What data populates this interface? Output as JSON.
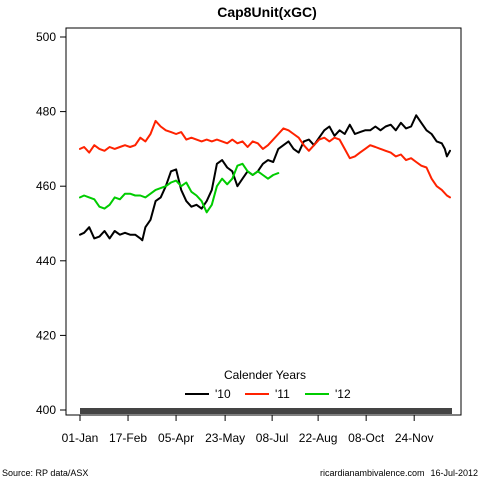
{
  "chart_data": {
    "type": "line",
    "title": "Cap8Unit(xGC)",
    "xlabel": "",
    "ylabel": "",
    "ylim": [
      400,
      500
    ],
    "xlim": [
      1,
      365
    ],
    "yticks": [
      400,
      420,
      440,
      460,
      480,
      500
    ],
    "xtick_labels": [
      "01-Jan",
      "17-Feb",
      "05-Apr",
      "23-May",
      "08-Jul",
      "22-Aug",
      "08-Oct",
      "24-Nov"
    ],
    "xtick_days": [
      1,
      48,
      95,
      143,
      189,
      234,
      281,
      328
    ],
    "legend_title": "Calender Years",
    "legend_position": "bottom-center",
    "grid": false,
    "series": [
      {
        "name": "'10",
        "color": "#000000",
        "x": [
          1,
          5,
          10,
          15,
          20,
          25,
          30,
          35,
          40,
          45,
          50,
          55,
          60,
          62,
          65,
          70,
          75,
          80,
          85,
          90,
          95,
          100,
          105,
          110,
          115,
          120,
          125,
          130,
          135,
          140,
          145,
          150,
          155,
          160,
          165,
          170,
          175,
          180,
          185,
          190,
          195,
          200,
          205,
          210,
          215,
          220,
          225,
          230,
          235,
          240,
          245,
          250,
          255,
          260,
          265,
          270,
          275,
          280,
          285,
          290,
          295,
          300,
          305,
          310,
          315,
          320,
          325,
          330,
          335,
          340,
          345,
          350,
          355,
          358,
          360,
          363
        ],
        "values": [
          447,
          447.5,
          449,
          446,
          446.5,
          448,
          446,
          448,
          447,
          447.5,
          447,
          447,
          446,
          445.5,
          449,
          451,
          456,
          457,
          460,
          464,
          464.5,
          459,
          456,
          454.5,
          455,
          454,
          456,
          459,
          466,
          467,
          465,
          464,
          460,
          462,
          464,
          463,
          464,
          466,
          467,
          466.5,
          470,
          471,
          472,
          470,
          469,
          472,
          472.5,
          471,
          473,
          475,
          476,
          473.5,
          475,
          474,
          476.5,
          474,
          474.5,
          475,
          475,
          476,
          475,
          476,
          476.5,
          475,
          477,
          475.5,
          476,
          479,
          477,
          475,
          474,
          472,
          471.5,
          470,
          468,
          469.5
        ]
      },
      {
        "name": "'11",
        "color": "#ff2200",
        "x": [
          1,
          5,
          10,
          15,
          20,
          25,
          30,
          35,
          40,
          45,
          50,
          55,
          60,
          65,
          70,
          75,
          80,
          85,
          90,
          95,
          100,
          105,
          110,
          115,
          120,
          125,
          130,
          135,
          140,
          145,
          150,
          155,
          160,
          165,
          170,
          175,
          180,
          185,
          190,
          195,
          200,
          205,
          210,
          215,
          220,
          225,
          230,
          235,
          240,
          245,
          250,
          255,
          260,
          265,
          270,
          275,
          280,
          285,
          290,
          295,
          300,
          305,
          310,
          315,
          320,
          325,
          330,
          335,
          340,
          345,
          350,
          355,
          360,
          363
        ],
        "values": [
          470,
          470.5,
          469,
          471,
          470,
          469.5,
          470.5,
          470,
          470.5,
          471,
          470.5,
          471,
          473,
          472,
          474,
          477.5,
          476,
          475,
          474.5,
          474,
          474.5,
          472.5,
          473,
          472.5,
          472,
          472.5,
          472,
          472.5,
          472,
          471.5,
          472.5,
          471.5,
          472,
          470.5,
          472,
          471.5,
          470,
          471,
          472.5,
          474,
          475.5,
          475,
          474,
          473,
          471,
          469.5,
          471,
          472.5,
          473,
          472,
          473,
          472.5,
          470,
          467.5,
          468,
          469,
          470,
          471,
          470.5,
          470,
          469.5,
          469,
          468,
          468.5,
          467,
          467.5,
          466.5,
          465.5,
          465,
          462,
          460,
          459,
          457.5,
          457
        ]
      },
      {
        "name": "'12",
        "color": "#00cc00",
        "x": [
          1,
          5,
          10,
          15,
          20,
          25,
          30,
          35,
          40,
          45,
          50,
          55,
          60,
          65,
          70,
          75,
          80,
          85,
          90,
          95,
          100,
          105,
          110,
          115,
          120,
          125,
          130,
          135,
          140,
          145,
          150,
          155,
          160,
          165,
          170,
          175,
          180,
          185,
          190,
          195
        ],
        "values": [
          457,
          457.5,
          457,
          456.5,
          454.5,
          454,
          455,
          457,
          456.5,
          458,
          458,
          457.5,
          457.5,
          457,
          458,
          459,
          459.5,
          460,
          461,
          461.5,
          460,
          461,
          458.5,
          457.5,
          456,
          453,
          455,
          460,
          462,
          460.5,
          462,
          465.5,
          466,
          464,
          463,
          464,
          463,
          462,
          463,
          463.5
        ]
      }
    ]
  },
  "footer": {
    "source": "Source: RP data/ASX",
    "site": "ricardianambivalence.com",
    "date": "16-Jul-2012"
  }
}
